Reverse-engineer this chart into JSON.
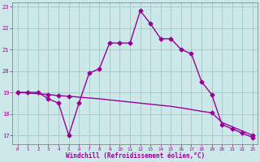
{
  "xlabel": "Windchill (Refroidissement éolien,°C)",
  "background_color": "#cce8e8",
  "grid_color": "#aacccc",
  "line_color": "#990099",
  "x_ticks": [
    0,
    1,
    2,
    3,
    4,
    5,
    6,
    7,
    8,
    9,
    10,
    11,
    12,
    13,
    14,
    15,
    16,
    17,
    18,
    19,
    20,
    21,
    22,
    23
  ],
  "y_ticks": [
    17,
    18,
    19,
    20,
    21,
    22,
    23
  ],
  "xlim": [
    -0.5,
    23.5
  ],
  "ylim": [
    16.6,
    23.2
  ],
  "line1_x": [
    0,
    1,
    2,
    3,
    4,
    5,
    6,
    7,
    8,
    9,
    10,
    11,
    12,
    13,
    14,
    15,
    16,
    17,
    18,
    19,
    20,
    21,
    22,
    23
  ],
  "line1_y": [
    19.0,
    19.0,
    19.0,
    18.7,
    18.5,
    17.0,
    18.5,
    19.9,
    20.1,
    21.3,
    21.3,
    21.3,
    22.8,
    22.2,
    21.5,
    21.5,
    21.0,
    20.8,
    19.5,
    18.9,
    17.5,
    17.3,
    17.1,
    16.9
  ],
  "line2_x": [
    0,
    1,
    2,
    3,
    4,
    5,
    6,
    7,
    8,
    9,
    10,
    11,
    12,
    13,
    14,
    15,
    16,
    17,
    18,
    19,
    20,
    21,
    22,
    23
  ],
  "line2_y": [
    19.0,
    18.97,
    18.94,
    18.9,
    18.85,
    18.82,
    18.78,
    18.74,
    18.7,
    18.65,
    18.6,
    18.55,
    18.5,
    18.45,
    18.4,
    18.35,
    18.28,
    18.2,
    18.12,
    18.05,
    17.6,
    17.4,
    17.2,
    17.0
  ],
  "marker": "D",
  "marker2_x": [
    0,
    3,
    4,
    5,
    19,
    23
  ],
  "marker2_y": [
    19.0,
    18.9,
    18.85,
    18.82,
    18.05,
    17.0
  ],
  "marker_size": 2.5,
  "line_width": 1.0
}
